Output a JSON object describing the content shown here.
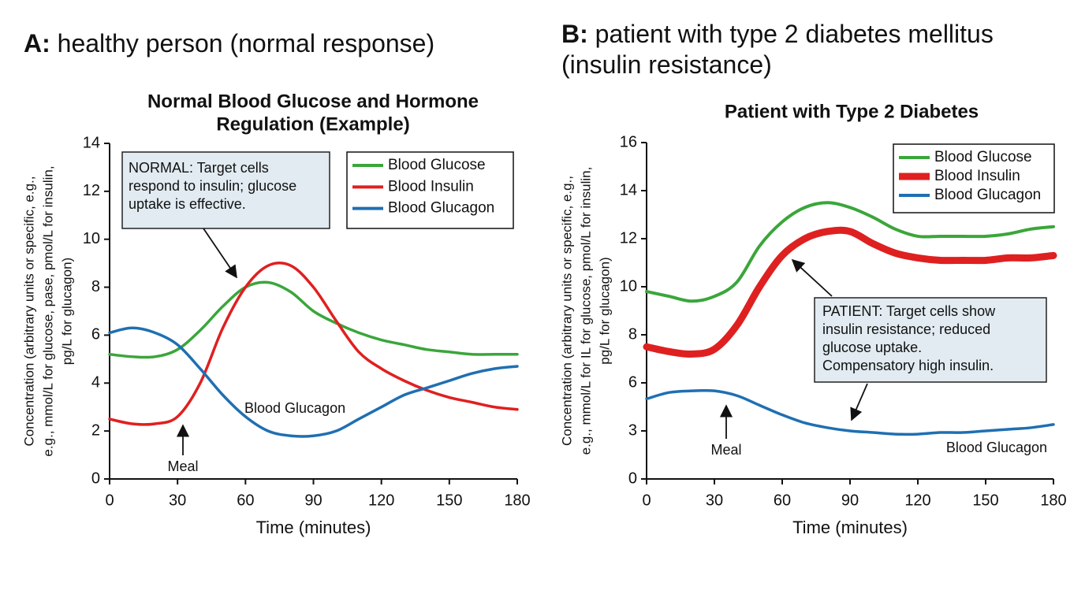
{
  "chart_data": [
    {
      "type": "line",
      "panel": "A:",
      "heading": [
        "healthy person (normal response)"
      ],
      "title": [
        "Normal Blood Glucose and Hormone",
        "Regulation (Example)"
      ],
      "xlabel": "Time (minutes)",
      "ylabel": [
        "Concentration (arbitrary units or specific, e.g.,",
        "e.g., mmol/L for glucose, pase, pmol/L for insulin,",
        "pg/L for glucagon)"
      ],
      "x": [
        0,
        10,
        20,
        30,
        40,
        50,
        60,
        70,
        80,
        90,
        100,
        110,
        120,
        130,
        140,
        150,
        160,
        170,
        180
      ],
      "series": [
        {
          "name": "Blood Glucose",
          "color": "#3aa63a",
          "linewidth": 3.5,
          "values": [
            5.2,
            5.1,
            5.1,
            5.4,
            6.2,
            7.2,
            8.0,
            8.2,
            7.8,
            7.0,
            6.5,
            6.1,
            5.8,
            5.6,
            5.4,
            5.3,
            5.2,
            5.2,
            5.2
          ]
        },
        {
          "name": "Blood Insulin",
          "color": "#df2020",
          "linewidth": 3.5,
          "values": [
            2.5,
            2.3,
            2.3,
            2.6,
            4.0,
            6.3,
            8.0,
            8.9,
            8.9,
            8.0,
            6.6,
            5.3,
            4.6,
            4.1,
            3.7,
            3.4,
            3.2,
            3.0,
            2.9
          ]
        },
        {
          "name": "Blood Glucagon",
          "color": "#1f6fb2",
          "linewidth": 3.5,
          "values": [
            6.1,
            6.3,
            6.1,
            5.6,
            4.6,
            3.5,
            2.6,
            2.0,
            1.8,
            1.8,
            2.0,
            2.5,
            3.0,
            3.5,
            3.8,
            4.1,
            4.4,
            4.6,
            4.7
          ]
        }
      ],
      "xlim": [
        0,
        180
      ],
      "xticks": [
        0,
        30,
        60,
        90,
        120,
        150,
        180
      ],
      "ylim": [
        0,
        14
      ],
      "yticks": [
        0,
        2,
        4,
        6,
        8,
        10,
        12,
        14
      ],
      "legend": "upper right",
      "annotations": [
        {
          "text": [
            "NORMAL: Target cells",
            "respond to insulin; glucose",
            "uptake is effective."
          ]
        },
        {
          "text": [
            "Blood Glucagon"
          ]
        },
        {
          "text": [
            "Meal"
          ]
        }
      ]
    },
    {
      "type": "line",
      "panel": "B:",
      "heading": [
        "patient with type 2 diabetes mellitus",
        "(insulin resistance)"
      ],
      "title": [
        "Patient with Type 2 Diabetes"
      ],
      "xlabel": "Time (minutes)",
      "ylabel": [
        "Concentration (arbitrary units or specific, e.g.,",
        "e.g., mmol/L for IL for glucose, pmol/L for insulin,",
        "pg/L for glucagon)"
      ],
      "x": [
        0,
        10,
        20,
        30,
        40,
        50,
        60,
        70,
        80,
        90,
        100,
        110,
        120,
        130,
        140,
        150,
        160,
        170,
        180
      ],
      "series": [
        {
          "name": "Blood Glucose",
          "color": "#3aa63a",
          "linewidth": 4,
          "values": [
            9.8,
            9.6,
            9.4,
            9.6,
            10.2,
            11.7,
            12.7,
            13.3,
            13.5,
            13.3,
            12.9,
            12.4,
            12.1,
            12.1,
            12.1,
            12.1,
            12.2,
            12.4,
            12.5
          ]
        },
        {
          "name": "Blood Insulin",
          "color": "#df2020",
          "linewidth": 9,
          "values": [
            7.5,
            7.3,
            7.2,
            7.4,
            8.4,
            10.0,
            11.3,
            12.0,
            12.3,
            12.3,
            11.8,
            11.4,
            11.2,
            11.1,
            11.1,
            11.1,
            11.2,
            11.2,
            11.3
          ]
        },
        {
          "name": "Blood Glucagon",
          "color": "#1f6fb2",
          "linewidth": 3.5,
          "values": [
            5.0,
            5.4,
            5.5,
            5.5,
            5.2,
            4.6,
            4.0,
            3.5,
            3.2,
            3.0,
            2.9,
            2.8,
            2.8,
            2.9,
            2.9,
            3.0,
            3.1,
            3.2,
            3.4
          ]
        }
      ],
      "xlim": [
        0,
        180
      ],
      "xticks": [
        0,
        30,
        60,
        90,
        120,
        150,
        180
      ],
      "ylim": [
        0,
        16
      ],
      "yticks": [
        0,
        3,
        6,
        8,
        10,
        12,
        14,
        16
      ],
      "legend": "upper right",
      "annotations": [
        {
          "text": [
            "PATIENT: Target cells show",
            "insulin resistance; reduced",
            "glucose uptake.",
            "Compensatory high insulin."
          ]
        },
        {
          "text": [
            "Meal"
          ]
        },
        {
          "text": [
            "Blood Glucagon"
          ]
        }
      ]
    }
  ]
}
